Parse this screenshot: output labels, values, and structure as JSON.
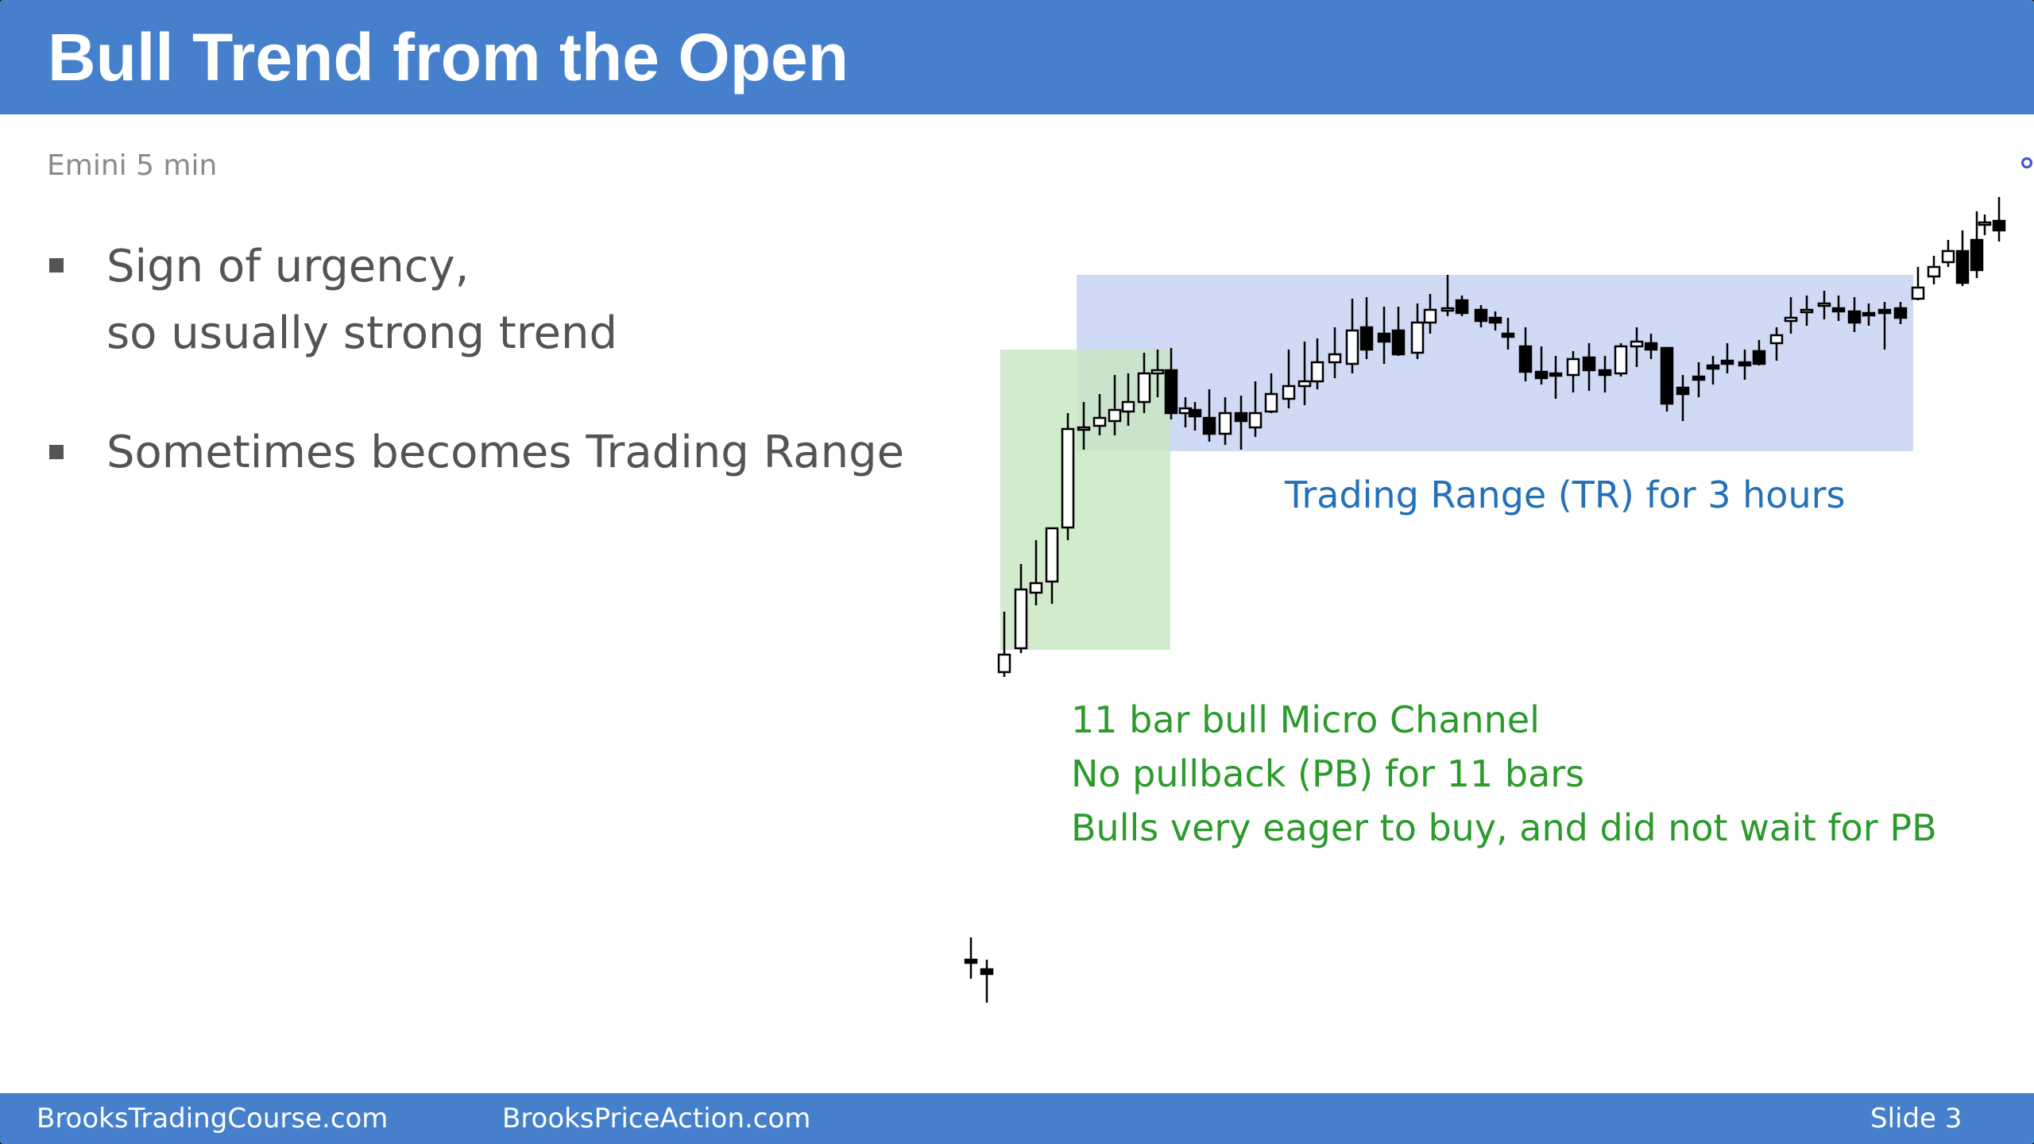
{
  "slide": {
    "title": "Bull Trend from the Open",
    "subtitle": "Emini 5 min",
    "bullets": [
      {
        "lines": [
          "Sign of urgency,",
          "so usually strong trend"
        ]
      },
      {
        "lines": [
          "Sometimes becomes Trading Range"
        ]
      }
    ],
    "annotations": {
      "trading_range": "Trading Range (TR) for 3 hours",
      "micro_channel": [
        "11 bar bull Micro Channel",
        "No pullback (PB) for 11 bars",
        "Bulls very eager to buy, and did not wait for PB"
      ]
    },
    "footer": {
      "left": "BrooksTradingCourse.com",
      "center": "BrooksPriceAction.com",
      "slide_number": "Slide  3"
    }
  },
  "colors": {
    "header_bg": "#4680cc",
    "micro_channel_box": "#c8e6c0",
    "trading_range_box": "#c9d4f2",
    "trading_range_text": "#2370b9",
    "micro_channel_text": "#2c9a2c"
  }
}
